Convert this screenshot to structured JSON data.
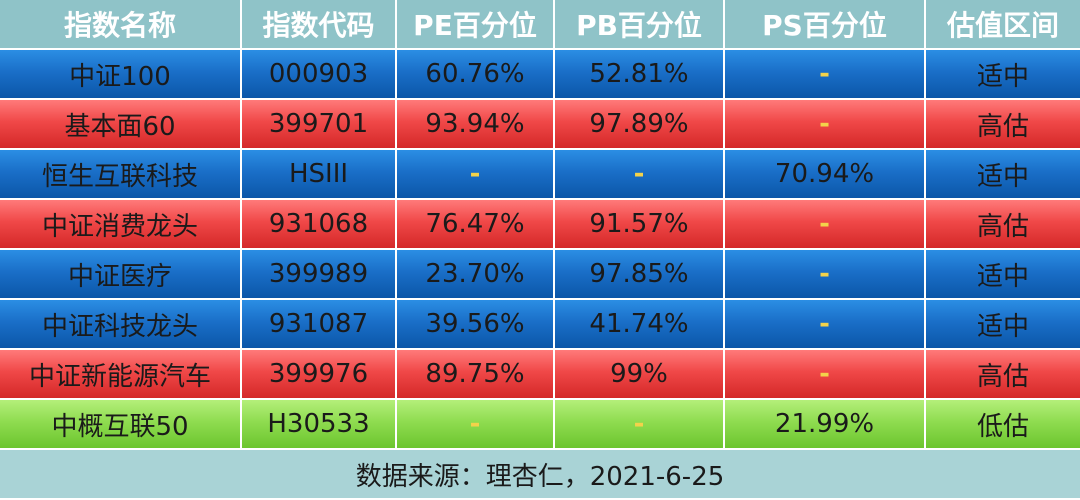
{
  "header": [
    "指数名称",
    "指数代码",
    "PE百分位",
    "PB百分位",
    "PS百分位",
    "估值区间"
  ],
  "rows": [
    {
      "name": "中证100",
      "code": "000903",
      "pe": "60.76%",
      "pb": "52.81%",
      "ps": "-",
      "valuation": "适中",
      "color": "blue"
    },
    {
      "name": "基本面60",
      "code": "399701",
      "pe": "93.94%",
      "pb": "97.89%",
      "ps": "-",
      "valuation": "高估",
      "color": "red"
    },
    {
      "name": "恒生互联科技",
      "code": "HSIII",
      "pe": "-",
      "pb": "-",
      "ps": "70.94%",
      "valuation": "适中",
      "color": "blue"
    },
    {
      "name": "中证消费龙头",
      "code": "931068",
      "pe": "76.47%",
      "pb": "91.57%",
      "ps": "-",
      "valuation": "高估",
      "color": "red"
    },
    {
      "name": "中证医疗",
      "code": "399989",
      "pe": "23.70%",
      "pb": "97.85%",
      "ps": "-",
      "valuation": "适中",
      "color": "blue"
    },
    {
      "name": "中证科技龙头",
      "code": "931087",
      "pe": "39.56%",
      "pb": "41.74%",
      "ps": "-",
      "valuation": "适中",
      "color": "blue"
    },
    {
      "name": "中证新能源汽车",
      "code": "399976",
      "pe": "89.75%",
      "pb": "99%",
      "ps": "-",
      "valuation": "高估",
      "color": "red"
    },
    {
      "name": "中概互联50",
      "code": "H30533",
      "pe": "-",
      "pb": "-",
      "ps": "21.99%",
      "valuation": "低估",
      "color": "green"
    }
  ],
  "footer": "数据来源：理杏仁，2021-6-25",
  "colors": {
    "header_bg": "#8fc3c8",
    "blue": "#1a6fc8",
    "red": "#f04848",
    "green": "#8fdc50",
    "dash": "#f3d24a",
    "footer_bg": "#a9d3d6"
  }
}
